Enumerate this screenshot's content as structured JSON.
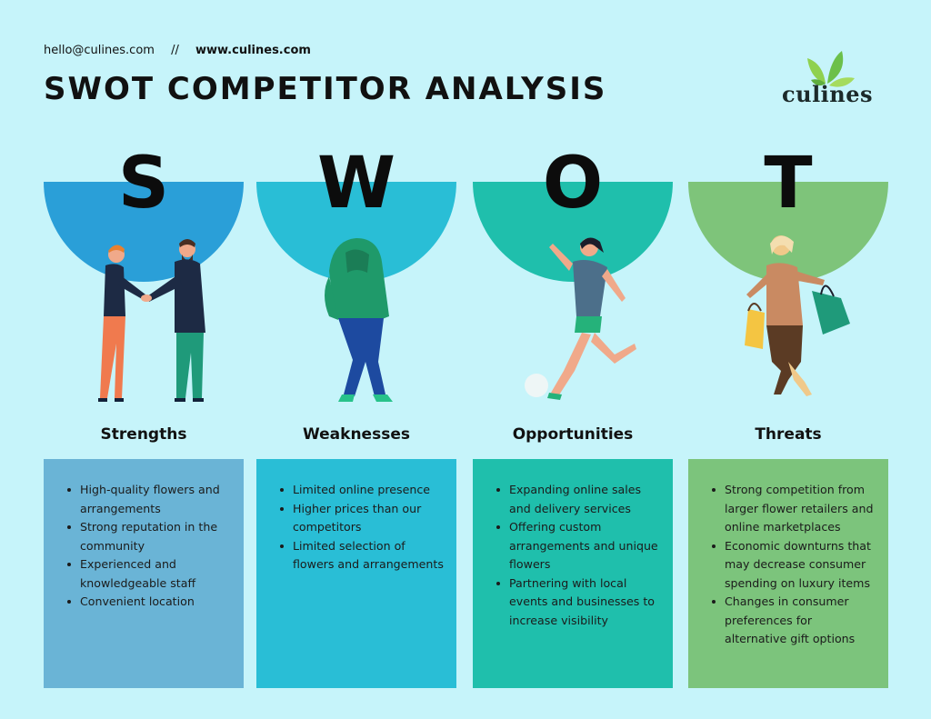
{
  "header": {
    "email": "hello@culines.com",
    "separator": "//",
    "website": "www.culines.com",
    "title": "SWOT COMPETITOR ANALYSIS"
  },
  "logo": {
    "text": "culines",
    "icon": "leaf-icon"
  },
  "colors": {
    "background": "#c6f4fa",
    "strengths_bowl": "#2a9fd8",
    "strengths_box": "#6ab4d6",
    "weaknesses": "#29bed6",
    "opportunities": "#1fbfac",
    "threats_bowl": "#7ec47a",
    "threats_box": "#7cc47c"
  },
  "swot": [
    {
      "letter": "S",
      "heading": "Strengths",
      "items": [
        "High-quality flowers and arrangements",
        "Strong reputation in the community",
        "Experienced and knowledgeable staff",
        "Convenient location"
      ]
    },
    {
      "letter": "W",
      "heading": "Weaknesses",
      "items": [
        "Limited online presence",
        "Higher prices than our competitors",
        "Limited selection of flowers and arrangements"
      ]
    },
    {
      "letter": "O",
      "heading": "Opportunities",
      "items": [
        "Expanding online sales and delivery services",
        "Offering custom arrangements and unique flowers",
        "Partnering with local events and businesses to increase visibility"
      ]
    },
    {
      "letter": "T",
      "heading": "Threats",
      "items": [
        "Strong competition from larger flower retailers and online marketplaces",
        "Economic downturns that may decrease consumer spending on luxury items",
        "Changes in consumer preferences for alternative gift options"
      ]
    }
  ]
}
